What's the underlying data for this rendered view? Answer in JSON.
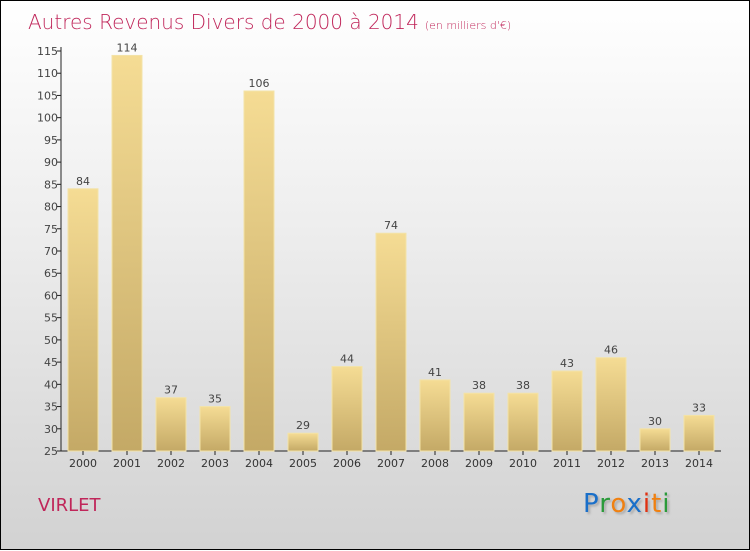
{
  "chart_data": {
    "type": "bar",
    "title": "Autres Revenus Divers de 2000 à 2014",
    "unit": "(en milliers d'€)",
    "categories": [
      "2000",
      "2001",
      "2002",
      "2003",
      "2004",
      "2005",
      "2006",
      "2007",
      "2008",
      "2009",
      "2010",
      "2011",
      "2012",
      "2013",
      "2014"
    ],
    "values": [
      84,
      114,
      37,
      35,
      106,
      29,
      44,
      74,
      41,
      38,
      38,
      43,
      46,
      30,
      33
    ],
    "ylim": [
      25,
      115
    ],
    "yticks": [
      25,
      30,
      35,
      40,
      45,
      50,
      55,
      60,
      65,
      70,
      75,
      80,
      85,
      90,
      95,
      100,
      105,
      110,
      115
    ],
    "xlabel": "",
    "ylabel": ""
  },
  "location": "VIRLET",
  "logo": {
    "letters": [
      "P",
      "r",
      "o",
      "x",
      "i",
      "t",
      "i"
    ],
    "colors": [
      "#1a6fc9",
      "#2a9a3a",
      "#f08010",
      "#1a6fc9",
      "#e03010",
      "#f08010",
      "#2a9a3a"
    ]
  }
}
